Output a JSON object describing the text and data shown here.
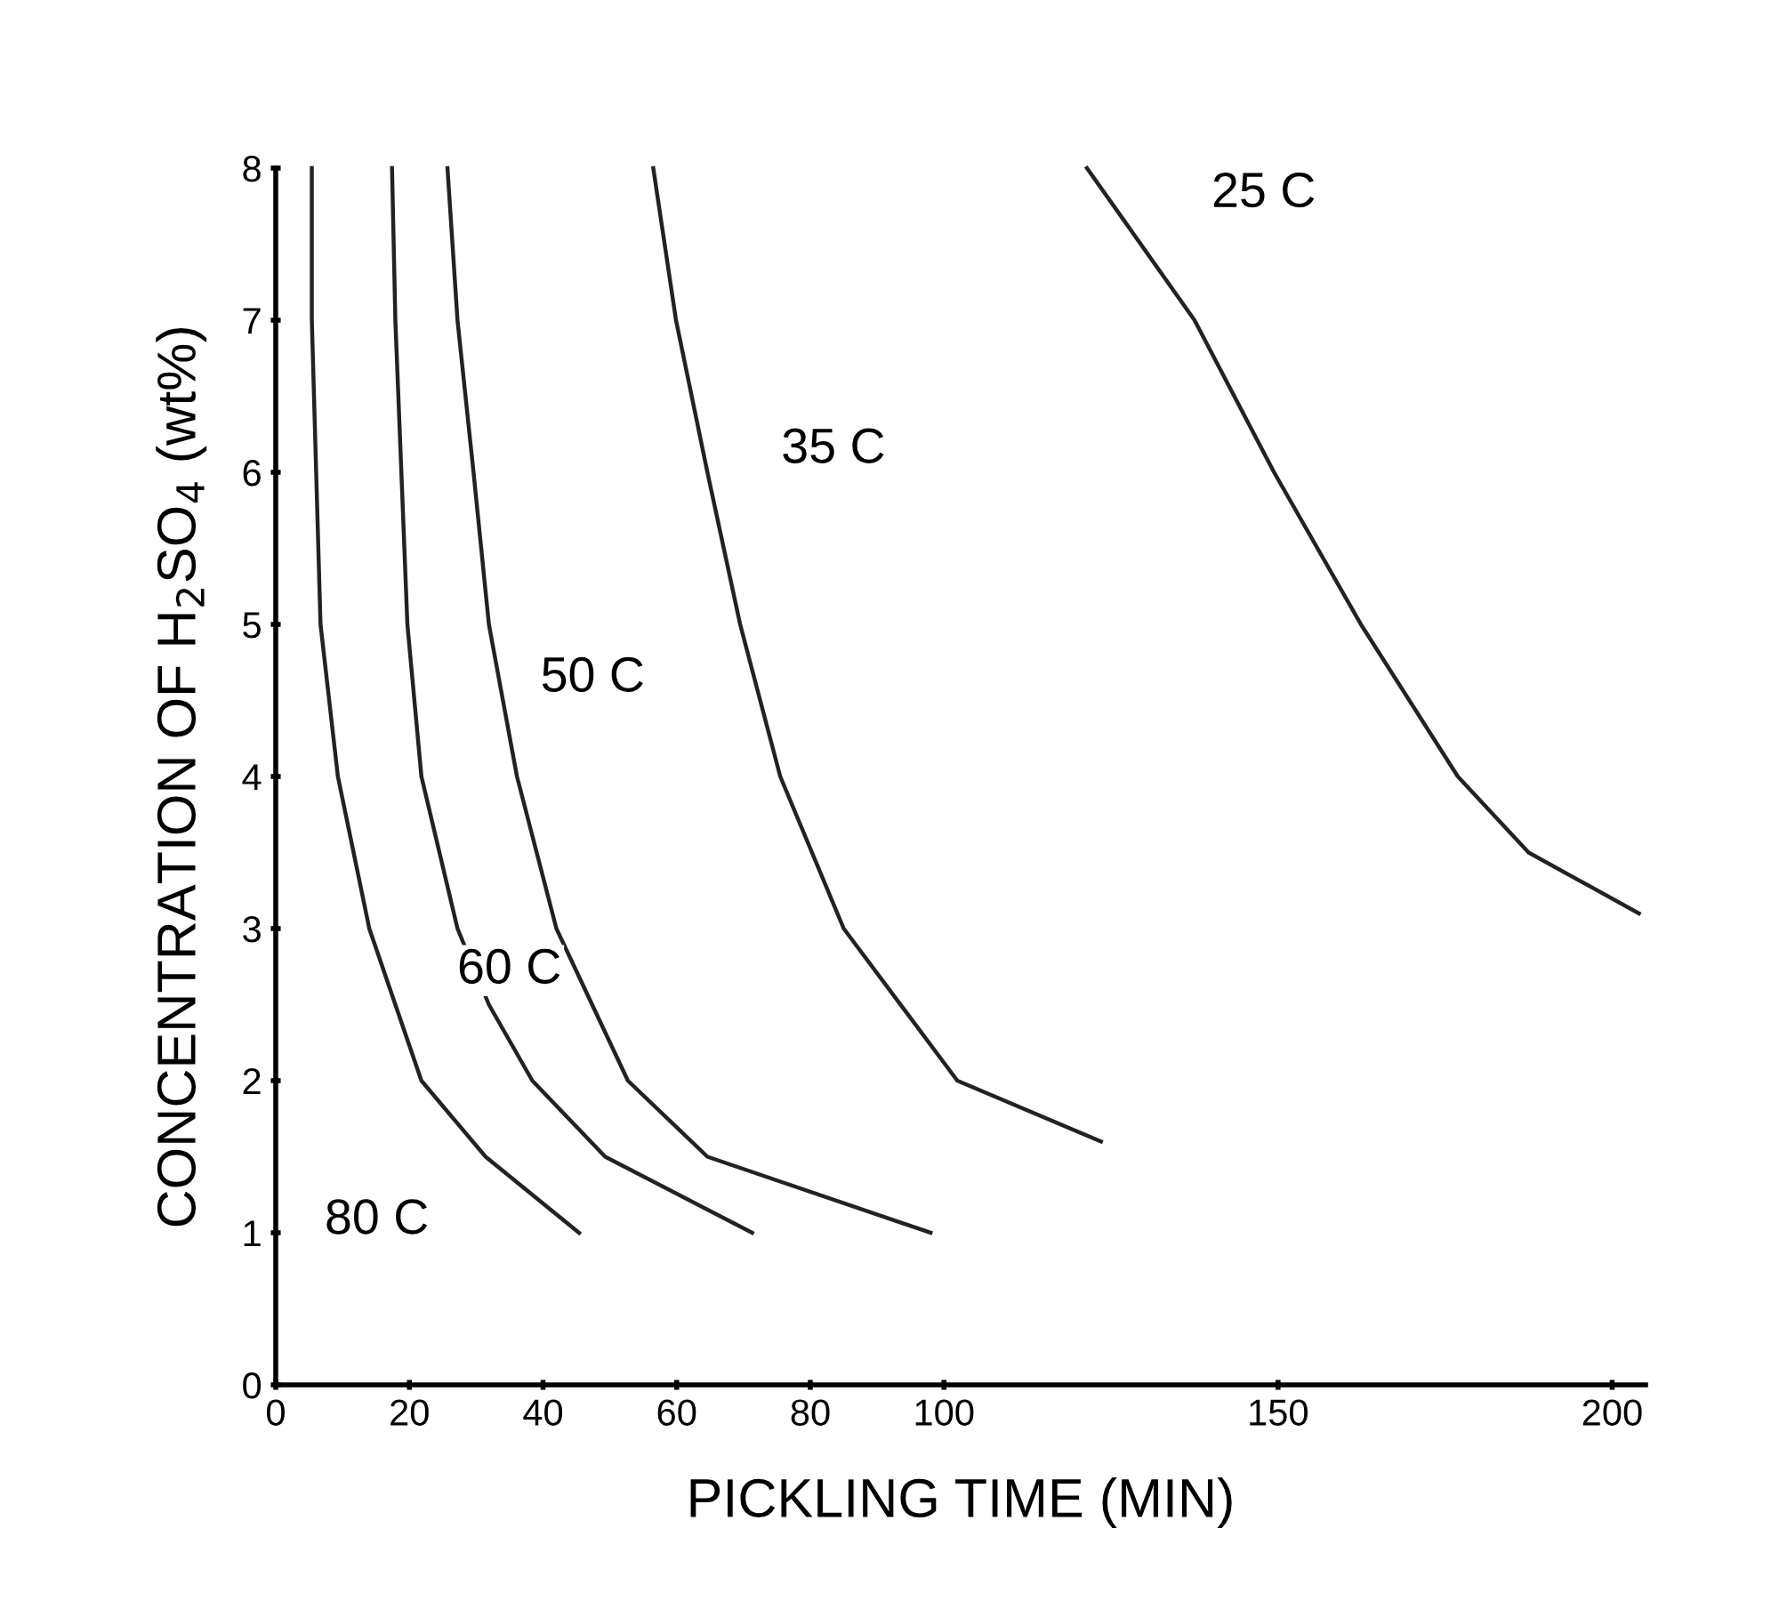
{
  "chart_data": {
    "type": "line",
    "xlabel": "PICKLING TIME (MIN)",
    "ylabel": "CONCENTRATION OF H$_{2}$SO$_{4}$ (wt%)",
    "xlim": [
      0,
      205
    ],
    "ylim": [
      0,
      8
    ],
    "xticks": [
      0,
      20,
      40,
      60,
      80,
      100,
      150,
      200
    ],
    "yticks": [
      0,
      1,
      2,
      3,
      4,
      5,
      6,
      7,
      8
    ],
    "grid": false,
    "legend": false,
    "marker": "none",
    "line_style": "solid",
    "series": [
      {
        "name": "80 C",
        "color": "#222222",
        "x": [
          5.4,
          5.4,
          6.7,
          9.3,
          14,
          21.8,
          31.4,
          45.4
        ],
        "values": [
          8,
          7,
          5,
          4,
          3,
          2,
          1.5,
          1
        ]
      },
      {
        "name": "60 C",
        "color": "#222222",
        "x": [
          17.4,
          17.9,
          19.7,
          21.8,
          27.2,
          31.9,
          38.4,
          49.3,
          71.3
        ],
        "values": [
          8,
          7,
          5,
          4,
          3,
          2.5,
          2,
          1.5,
          1
        ]
      },
      {
        "name": "50 C",
        "color": "#222222",
        "x": [
          25.7,
          27.2,
          29.6,
          31.9,
          36.1,
          42,
          52.7,
          64.6,
          98
        ],
        "values": [
          8,
          7,
          6,
          5,
          4,
          3,
          2,
          1.5,
          1
        ]
      },
      {
        "name": "35 C",
        "color": "#222222",
        "x": [
          56.5,
          59.9,
          64.6,
          69.5,
          75.5,
          85,
          102,
          123.5
        ],
        "values": [
          8,
          7,
          6,
          5,
          4,
          3,
          2,
          1.6
        ]
      },
      {
        "name": "25 C",
        "color": "#222222",
        "x": [
          121.4,
          137.5,
          149.4,
          162.4,
          176.9,
          187.5,
          204
        ],
        "values": [
          8,
          7,
          6,
          5,
          4,
          3.5,
          3.1
        ]
      }
    ]
  }
}
